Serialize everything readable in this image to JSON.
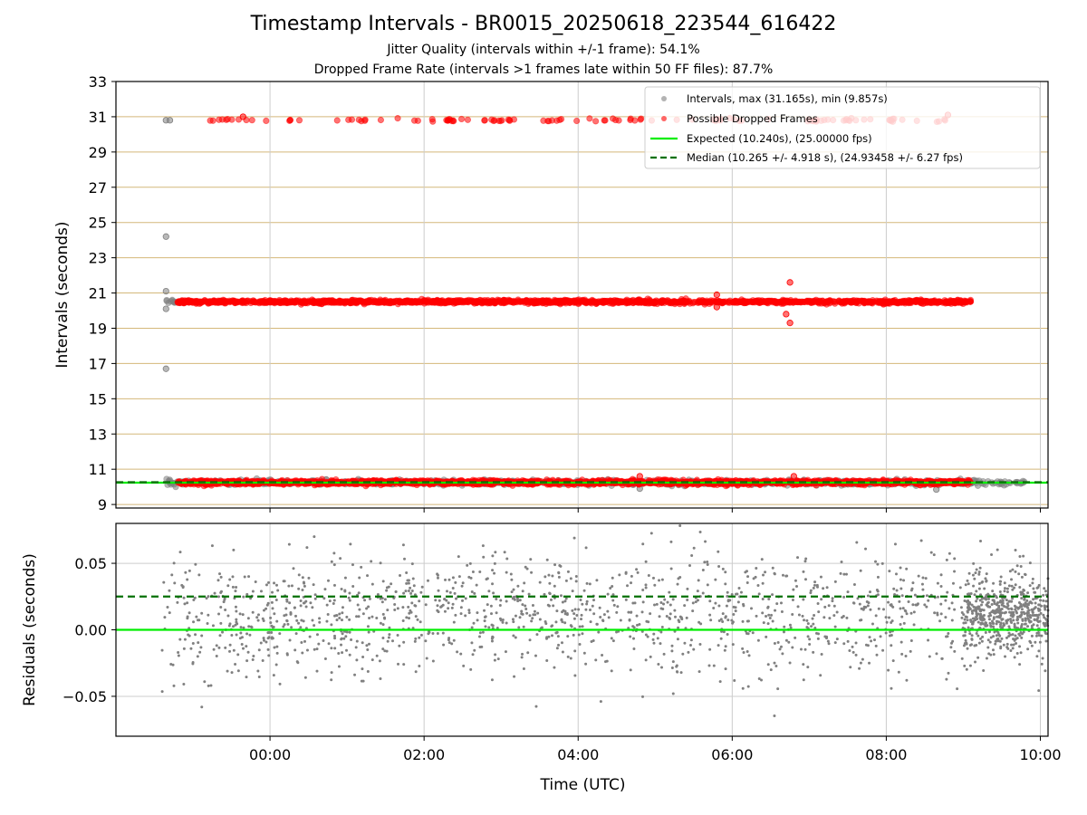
{
  "figure": {
    "title": "Timestamp Intervals - BR0015_20250618_223544_616422",
    "subtitle_1": "Jitter Quality (intervals within +/-1 frame): 54.1%",
    "subtitle_2": "Dropped Frame Rate (intervals >1 frames late within 50 FF files): 87.7%"
  },
  "colors": {
    "intervals": "#808080",
    "dropped": "#ff0000",
    "expected": "#00ee00",
    "median": "#007000",
    "hgrid_top": "#d4b87a",
    "grid": "#cccccc"
  },
  "chart_data": [
    {
      "type": "scatter",
      "panel": "intervals",
      "ylabel": "Intervals (seconds)",
      "xlabel": "",
      "ylim": [
        8.8,
        33
      ],
      "yticks": [
        "9",
        "11",
        "13",
        "15",
        "17",
        "19",
        "21",
        "23",
        "25",
        "27",
        "29",
        "31",
        "33"
      ],
      "xlim_hours": [
        -2.0,
        10.1
      ],
      "xticks": [
        "00:00",
        "02:00",
        "04:00",
        "06:00",
        "08:00",
        "10:00"
      ],
      "grid": "on",
      "legend": {
        "placement": "top-right",
        "entries": [
          "Intervals, max (31.165s), min (9.857s)",
          "Possible Dropped Frames",
          "Expected (10.240s), (25.00000 fps)",
          "Median (10.265 +/- 4.918 s), (24.93458 +/- 6.27 fps)"
        ]
      },
      "expected_interval": 10.24,
      "median_interval": 10.265,
      "series": [
        {
          "name": "Intervals, max (31.165s), min (9.857s)",
          "bands": [
            {
              "x_range": [
                -1.35,
                9.8
              ],
              "y_center": 10.25,
              "spread": 0.12
            },
            {
              "x_range": [
                -1.35,
                -1.2
              ],
              "y_center": 20.5,
              "spread": 0.15
            }
          ],
          "outliers": [
            {
              "x": -1.35,
              "y": 24.2
            },
            {
              "x": -1.35,
              "y": 21.1
            },
            {
              "x": -1.35,
              "y": 20.1
            },
            {
              "x": -1.35,
              "y": 16.7
            },
            {
              "x": -1.3,
              "y": 30.8
            },
            {
              "x": -1.35,
              "y": 30.8
            },
            {
              "x": 8.65,
              "y": 9.85
            },
            {
              "x": 4.8,
              "y": 9.9
            }
          ]
        },
        {
          "name": "Possible Dropped Frames",
          "bands": [
            {
              "x_range": [
                -1.2,
                9.1
              ],
              "y_center": 10.25,
              "spread": 0.1
            },
            {
              "x_range": [
                -1.2,
                9.1
              ],
              "y_center": 20.5,
              "spread": 0.08
            },
            {
              "x_range": [
                -0.8,
                8.85
              ],
              "y_center": 30.8,
              "spread": 0.08,
              "sparse": true
            }
          ],
          "outliers": [
            {
              "x": 6.75,
              "y": 21.6
            },
            {
              "x": 6.75,
              "y": 19.3
            },
            {
              "x": 6.7,
              "y": 19.8
            },
            {
              "x": 5.8,
              "y": 20.9
            },
            {
              "x": 5.8,
              "y": 20.2
            },
            {
              "x": -0.35,
              "y": 31.0
            },
            {
              "x": 8.8,
              "y": 31.1
            },
            {
              "x": 4.8,
              "y": 10.6
            },
            {
              "x": 6.8,
              "y": 10.6
            }
          ]
        }
      ]
    },
    {
      "type": "scatter",
      "panel": "residuals",
      "ylabel": "Residuals (seconds)",
      "xlabel": "Time (UTC)",
      "ylim": [
        -0.08,
        0.08
      ],
      "yticks": [
        "−0.05",
        "0.00",
        "0.05"
      ],
      "ytick_values": [
        -0.05,
        0.0,
        0.05
      ],
      "xlim_hours": [
        -2.0,
        10.1
      ],
      "xticks": [
        "00:00",
        "02:00",
        "04:00",
        "06:00",
        "08:00",
        "10:00"
      ],
      "grid": "on",
      "series": [
        {
          "name": "",
          "x_range": [
            -1.4,
            10.1
          ],
          "y_center": 0.01,
          "spread": 0.03
        },
        {
          "name": "",
          "cluster": {
            "x_range": [
              9.0,
              10.1
            ],
            "y_center": 0.012,
            "spread": 0.018
          }
        }
      ],
      "expected_residual": 0.0,
      "median_residual": 0.025
    }
  ]
}
